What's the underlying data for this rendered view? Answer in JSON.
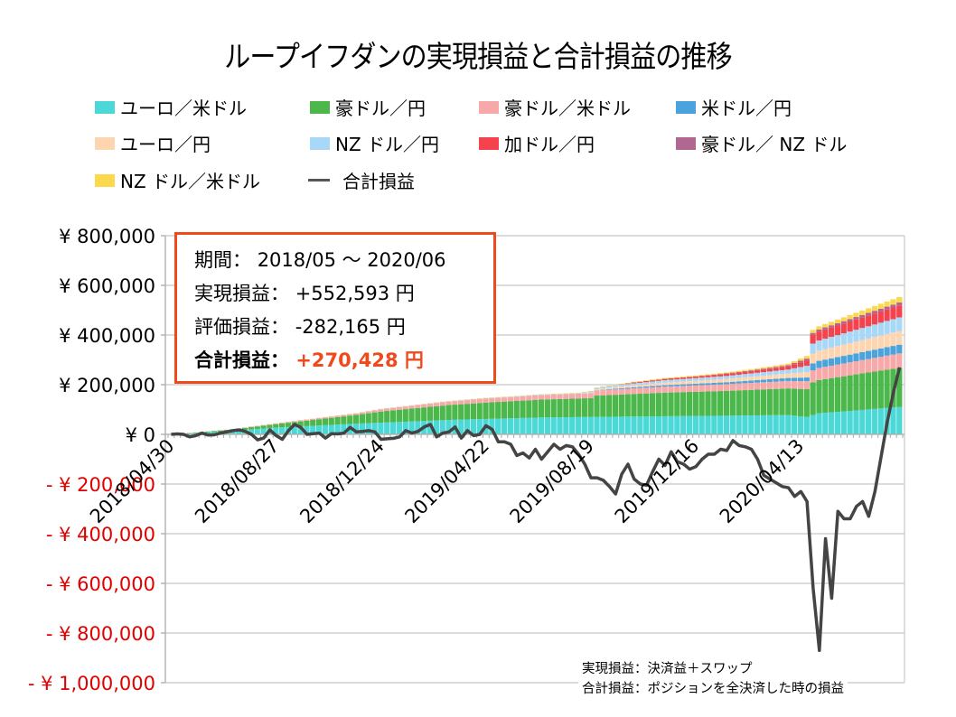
{
  "chart_data": {
    "type": "area",
    "subtype": "stacked-bar-with-line",
    "title": "ループイフダンの実現損益と合計損益の推移",
    "xlabel": "",
    "ylabel": "",
    "ylim": [
      -1000000,
      800000
    ],
    "yticks": [
      800000,
      600000,
      400000,
      200000,
      0,
      -200000,
      -400000,
      -600000,
      -800000,
      -1000000
    ],
    "ytick_labels": [
      "¥ 800,000",
      "¥ 600,000",
      "¥ 400,000",
      "¥ 200,000",
      "¥ 0",
      "- ¥ 200,000",
      "- ¥ 400,000",
      "- ¥ 600,000",
      "- ¥ 800,000",
      "- ¥ 1,000,000"
    ],
    "x_start": "2018/04/30",
    "x_interval": "weekly",
    "x_count": 119,
    "xtick_labels": [
      "2018/04/30",
      "2018/08/27",
      "2018/12/24",
      "2019/04/22",
      "2019/08/19",
      "2019/12/16",
      "2020/04/13"
    ],
    "xtick_index": [
      0,
      17,
      34,
      51,
      68,
      85,
      102
    ],
    "grid": true,
    "legend_position": "top",
    "negative_label_color": "#e00000",
    "stack_keypoints_note": "Each stacked series is given as [weekIndex, value] keypoints, linearly interpolated between them (values in JPY, read from the chart).",
    "series": [
      {
        "name": "ユーロ／米ドル",
        "color": "#4dd8d8",
        "kind": "bar",
        "keypoints": [
          [
            0,
            0
          ],
          [
            2,
            2000
          ],
          [
            10,
            14000
          ],
          [
            17,
            27000
          ],
          [
            30,
            43000
          ],
          [
            34,
            47000
          ],
          [
            45,
            58000
          ],
          [
            51,
            62000
          ],
          [
            60,
            68000
          ],
          [
            68,
            70000
          ],
          [
            80,
            73000
          ],
          [
            90,
            75000
          ],
          [
            100,
            78000
          ],
          [
            103,
            70000
          ],
          [
            105,
            85000
          ],
          [
            118,
            110000
          ]
        ]
      },
      {
        "name": "豪ドル／円",
        "color": "#4cb84c",
        "kind": "bar",
        "keypoints": [
          [
            0,
            0
          ],
          [
            2,
            1000
          ],
          [
            10,
            6000
          ],
          [
            17,
            14000
          ],
          [
            30,
            35000
          ],
          [
            34,
            45000
          ],
          [
            45,
            60000
          ],
          [
            51,
            66000
          ],
          [
            60,
            72000
          ],
          [
            68,
            76000
          ],
          [
            69,
            86000
          ],
          [
            80,
            95000
          ],
          [
            90,
            100000
          ],
          [
            100,
            107000
          ],
          [
            103,
            112000
          ],
          [
            104,
            132000
          ],
          [
            118,
            158000
          ]
        ]
      },
      {
        "name": "豪ドル／米ドル",
        "color": "#f7a8a8",
        "kind": "bar",
        "keypoints": [
          [
            0,
            0
          ],
          [
            10,
            1000
          ],
          [
            17,
            3000
          ],
          [
            30,
            6000
          ],
          [
            34,
            9000
          ],
          [
            45,
            14000
          ],
          [
            51,
            16000
          ],
          [
            60,
            18000
          ],
          [
            68,
            20000
          ],
          [
            80,
            24000
          ],
          [
            90,
            27000
          ],
          [
            100,
            30000
          ],
          [
            103,
            32000
          ],
          [
            104,
            48000
          ],
          [
            118,
            58000
          ]
        ]
      },
      {
        "name": "米ドル／円",
        "color": "#4aa3dc",
        "kind": "bar",
        "keypoints": [
          [
            0,
            0
          ],
          [
            68,
            0
          ],
          [
            72,
            3000
          ],
          [
            80,
            6000
          ],
          [
            90,
            8000
          ],
          [
            100,
            12000
          ],
          [
            103,
            15000
          ],
          [
            104,
            28000
          ],
          [
            118,
            35000
          ]
        ]
      },
      {
        "name": "ユーロ／円",
        "color": "#fdd5b1",
        "kind": "bar",
        "keypoints": [
          [
            0,
            0
          ],
          [
            66,
            0
          ],
          [
            70,
            6000
          ],
          [
            80,
            10000
          ],
          [
            90,
            13000
          ],
          [
            100,
            18000
          ],
          [
            103,
            22000
          ],
          [
            104,
            40000
          ],
          [
            118,
            55000
          ]
        ]
      },
      {
        "name": "NZドル／円",
        "color": "#a8d8f8",
        "kind": "bar",
        "keypoints": [
          [
            0,
            0
          ],
          [
            66,
            2000
          ],
          [
            70,
            6000
          ],
          [
            80,
            10000
          ],
          [
            90,
            12000
          ],
          [
            100,
            16000
          ],
          [
            103,
            25000
          ],
          [
            104,
            40000
          ],
          [
            118,
            55000
          ]
        ]
      },
      {
        "name": "加ドル／円",
        "color": "#f5434d",
        "kind": "bar",
        "keypoints": [
          [
            0,
            0
          ],
          [
            72,
            0
          ],
          [
            75,
            4000
          ],
          [
            85,
            7000
          ],
          [
            95,
            10000
          ],
          [
            100,
            14000
          ],
          [
            103,
            22000
          ],
          [
            104,
            35000
          ],
          [
            118,
            48000
          ]
        ]
      },
      {
        "name": "豪ドル／NZドル",
        "color": "#b06890",
        "kind": "bar",
        "keypoints": [
          [
            0,
            0
          ],
          [
            85,
            0
          ],
          [
            90,
            2000
          ],
          [
            100,
            4000
          ],
          [
            104,
            8000
          ],
          [
            118,
            12000
          ]
        ]
      },
      {
        "name": "NZドル／米ドル",
        "color": "#fcd84f",
        "kind": "bar",
        "keypoints": [
          [
            0,
            0
          ],
          [
            72,
            2000
          ],
          [
            80,
            3000
          ],
          [
            90,
            4000
          ],
          [
            100,
            6000
          ],
          [
            104,
            12000
          ],
          [
            118,
            22000
          ]
        ]
      },
      {
        "name": "合計損益",
        "color": "#444444",
        "kind": "line",
        "values": [
          0,
          2000,
          0,
          -10000,
          -5000,
          5000,
          -3000,
          -2000,
          5000,
          10000,
          15000,
          18000,
          12000,
          0,
          -22000,
          -15000,
          18000,
          -5000,
          -20000,
          15000,
          40000,
          28000,
          0,
          3000,
          5000,
          -15000,
          3000,
          2000,
          5000,
          28000,
          10000,
          12000,
          15000,
          10000,
          -20000,
          -18000,
          -16000,
          -10000,
          15000,
          5000,
          12000,
          30000,
          40000,
          -10000,
          5000,
          10000,
          30000,
          -15000,
          15000,
          -5000,
          0,
          35000,
          20000,
          -30000,
          -30000,
          -40000,
          -85000,
          -75000,
          -95000,
          -60000,
          -100000,
          -70000,
          -40000,
          -60000,
          -45000,
          -50000,
          -80000,
          -120000,
          -175000,
          -175000,
          -185000,
          -210000,
          -240000,
          -160000,
          -120000,
          -180000,
          -200000,
          -205000,
          -150000,
          -100000,
          -125000,
          -70000,
          -110000,
          -120000,
          -140000,
          -130000,
          -100000,
          -80000,
          -80000,
          -60000,
          -65000,
          -25000,
          -45000,
          -50000,
          -60000,
          -100000,
          -165000,
          -180000,
          -195000,
          -210000,
          -215000,
          -250000,
          -230000,
          -270000,
          -620000,
          -870000,
          -420000,
          -660000,
          -310000,
          -340000,
          -340000,
          -290000,
          -270000,
          -330000,
          -230000,
          -90000,
          50000,
          170000,
          270000
        ]
      }
    ]
  },
  "legend": [
    {
      "label": "ユーロ／米ドル",
      "color": "#4dd8d8"
    },
    {
      "label": "豪ドル／円",
      "color": "#4cb84c"
    },
    {
      "label": "豪ドル／米ドル",
      "color": "#f7a8a8"
    },
    {
      "label": "米ドル／円",
      "color": "#4aa3dc"
    },
    {
      "label": "ユーロ／円",
      "color": "#fdd5b1"
    },
    {
      "label": "NZ ドル／円",
      "color": "#a8d8f8"
    },
    {
      "label": "加ドル／円",
      "color": "#f5434d"
    },
    {
      "label": "豪ドル／ NZ ドル",
      "color": "#b06890"
    },
    {
      "label": "NZ ドル／米ドル",
      "color": "#fcd84f"
    },
    {
      "label": "合計損益",
      "color": "#555555",
      "line": true
    }
  ],
  "infobox": {
    "period_label": "期間：",
    "period_value": "2018/05 〜 2020/06",
    "realized_label": "実現損益：",
    "realized_value": "+552,593 円",
    "unrealized_label": "評価損益：",
    "unrealized_value": "-282,165 円",
    "total_label": "合計損益：",
    "total_value": "+270,428 円",
    "border_color": "#f04a1c"
  },
  "notes": [
    "実現損益：決済益＋スワップ",
    "合計損益：ポジションを全決済した時の損益"
  ]
}
